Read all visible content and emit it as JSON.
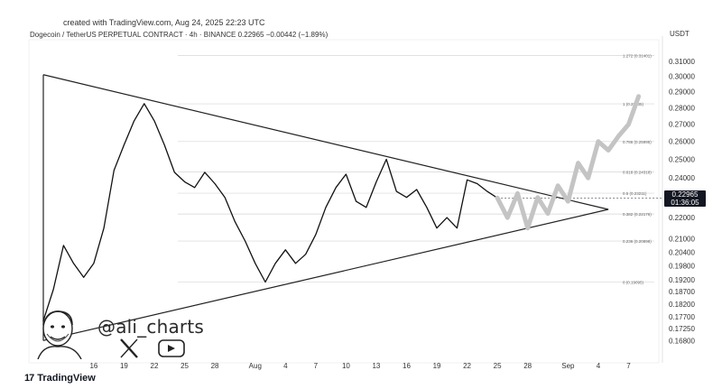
{
  "header": {
    "created": "created with TradingView.com, Aug 24, 2025 22:23 UTC",
    "symbol": "Dogecoin / TetherUS PERPETUAL CONTRACT · 4h · BINANCE  0.22965  −0.00442 (−1.89%)",
    "unit": "USDT"
  },
  "price_tag": {
    "price": "0.22965",
    "timer": "01:36:05",
    "value": 0.22965
  },
  "watermark": {
    "handle": "@ali_charts",
    "icons": [
      "avatar-illustration",
      "x-logo-icon",
      "youtube-play-icon"
    ]
  },
  "branding": {
    "name": "TradingView"
  },
  "colors": {
    "price_line": "#111111",
    "projection": "#c4c4c4",
    "tag_bg": "#131722",
    "fib_line": "#d6d6d6"
  },
  "chart_data": {
    "type": "line",
    "y_scale": "log",
    "ylim": [
      0.16,
      0.325
    ],
    "x_range": [
      "2025-07-11",
      "2025-09-10"
    ],
    "y_ticks": [
      "0.31000",
      "0.30000",
      "0.29000",
      "0.28000",
      "0.27000",
      "0.26000",
      "0.25000",
      "0.24000",
      "0.22965",
      "0.22000",
      "0.21000",
      "0.20400",
      "0.19800",
      "0.19200",
      "0.18700",
      "0.18200",
      "0.17700",
      "0.17250",
      "0.16800"
    ],
    "x_ticks": [
      {
        "label": "16",
        "date": "2025-07-16"
      },
      {
        "label": "19",
        "date": "2025-07-19"
      },
      {
        "label": "22",
        "date": "2025-07-22"
      },
      {
        "label": "25",
        "date": "2025-07-25"
      },
      {
        "label": "28",
        "date": "2025-07-28"
      },
      {
        "label": "Aug",
        "date": "2025-08-01"
      },
      {
        "label": "4",
        "date": "2025-08-04"
      },
      {
        "label": "7",
        "date": "2025-08-07"
      },
      {
        "label": "10",
        "date": "2025-08-10"
      },
      {
        "label": "13",
        "date": "2025-08-13"
      },
      {
        "label": "16",
        "date": "2025-08-16"
      },
      {
        "label": "19",
        "date": "2025-08-19"
      },
      {
        "label": "22",
        "date": "2025-08-22"
      },
      {
        "label": "25",
        "date": "2025-08-25"
      },
      {
        "label": "28",
        "date": "2025-08-28"
      },
      {
        "label": "Sep",
        "date": "2025-09-01"
      },
      {
        "label": "4",
        "date": "2025-09-04"
      },
      {
        "label": "7",
        "date": "2025-09-07"
      }
    ],
    "fib_levels": [
      {
        "label": "1.272 (0.31401)",
        "value": 0.31401
      },
      {
        "label": "1 (0.28235)",
        "value": 0.28235
      },
      {
        "label": "0.786 (0.25995)",
        "value": 0.25995
      },
      {
        "label": "0.618 (0.24318)",
        "value": 0.24318
      },
      {
        "label": "0.5 (0.23211)",
        "value": 0.23211
      },
      {
        "label": "0.382 (0.22176)",
        "value": 0.22176
      },
      {
        "label": "0.236 (0.20898)",
        "value": 0.20898
      },
      {
        "label": "0 (0.19095)",
        "value": 0.19095
      }
    ],
    "triangle": {
      "upper": [
        {
          "x": "2025-07-11",
          "y": 0.301
        },
        {
          "x": "2025-09-05",
          "y": 0.224
        }
      ],
      "lower": [
        {
          "x": "2025-07-11",
          "y": 0.168
        },
        {
          "x": "2025-09-05",
          "y": 0.224
        }
      ]
    },
    "series": [
      {
        "points": [
          {
            "x": "2025-07-11",
            "y": 0.1755
          },
          {
            "x": "2025-07-12",
            "y": 0.188
          },
          {
            "x": "2025-07-13",
            "y": 0.207
          },
          {
            "x": "2025-07-14",
            "y": 0.199
          },
          {
            "x": "2025-07-15",
            "y": 0.193
          },
          {
            "x": "2025-07-16",
            "y": 0.199
          },
          {
            "x": "2025-07-17",
            "y": 0.215
          },
          {
            "x": "2025-07-18",
            "y": 0.244
          },
          {
            "x": "2025-07-19",
            "y": 0.258
          },
          {
            "x": "2025-07-20",
            "y": 0.272
          },
          {
            "x": "2025-07-21",
            "y": 0.2825
          },
          {
            "x": "2025-07-22",
            "y": 0.272
          },
          {
            "x": "2025-07-23",
            "y": 0.258
          },
          {
            "x": "2025-07-24",
            "y": 0.243
          },
          {
            "x": "2025-07-25",
            "y": 0.238
          },
          {
            "x": "2025-07-26",
            "y": 0.235
          },
          {
            "x": "2025-07-27",
            "y": 0.243
          },
          {
            "x": "2025-07-28",
            "y": 0.237
          },
          {
            "x": "2025-07-29",
            "y": 0.23
          },
          {
            "x": "2025-07-30",
            "y": 0.218
          },
          {
            "x": "2025-07-31",
            "y": 0.209
          },
          {
            "x": "2025-08-01",
            "y": 0.199
          },
          {
            "x": "2025-08-02",
            "y": 0.191
          },
          {
            "x": "2025-08-03",
            "y": 0.199
          },
          {
            "x": "2025-08-04",
            "y": 0.205
          },
          {
            "x": "2025-08-05",
            "y": 0.199
          },
          {
            "x": "2025-08-06",
            "y": 0.203
          },
          {
            "x": "2025-08-07",
            "y": 0.212
          },
          {
            "x": "2025-08-08",
            "y": 0.225
          },
          {
            "x": "2025-08-09",
            "y": 0.235
          },
          {
            "x": "2025-08-10",
            "y": 0.242
          },
          {
            "x": "2025-08-11",
            "y": 0.228
          },
          {
            "x": "2025-08-12",
            "y": 0.225
          },
          {
            "x": "2025-08-13",
            "y": 0.238
          },
          {
            "x": "2025-08-14",
            "y": 0.25
          },
          {
            "x": "2025-08-15",
            "y": 0.233
          },
          {
            "x": "2025-08-16",
            "y": 0.23
          },
          {
            "x": "2025-08-17",
            "y": 0.234
          },
          {
            "x": "2025-08-18",
            "y": 0.225
          },
          {
            "x": "2025-08-19",
            "y": 0.215
          },
          {
            "x": "2025-08-20",
            "y": 0.22
          },
          {
            "x": "2025-08-21",
            "y": 0.215
          },
          {
            "x": "2025-08-22",
            "y": 0.239
          },
          {
            "x": "2025-08-23",
            "y": 0.237
          },
          {
            "x": "2025-08-24",
            "y": 0.233
          },
          {
            "x": "2025-08-25",
            "y": 0.2297
          }
        ]
      },
      {
        "points": [
          {
            "x": "2025-08-25",
            "y": 0.2297
          },
          {
            "x": "2025-08-26",
            "y": 0.22
          },
          {
            "x": "2025-08-27",
            "y": 0.232
          },
          {
            "x": "2025-08-28",
            "y": 0.215
          },
          {
            "x": "2025-08-29",
            "y": 0.23
          },
          {
            "x": "2025-08-30",
            "y": 0.222
          },
          {
            "x": "2025-08-31",
            "y": 0.236
          },
          {
            "x": "2025-09-01",
            "y": 0.228
          },
          {
            "x": "2025-09-02",
            "y": 0.248
          },
          {
            "x": "2025-09-03",
            "y": 0.24
          },
          {
            "x": "2025-09-04",
            "y": 0.26
          },
          {
            "x": "2025-09-05",
            "y": 0.255
          },
          {
            "x": "2025-09-06",
            "y": 0.263
          },
          {
            "x": "2025-09-07",
            "y": 0.27
          },
          {
            "x": "2025-09-08",
            "y": 0.287
          }
        ]
      }
    ]
  }
}
